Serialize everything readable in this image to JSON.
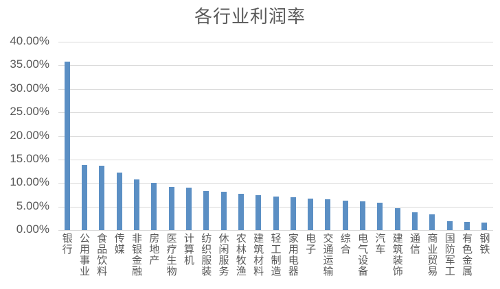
{
  "chart_data": {
    "type": "bar",
    "title": "各行业利润率",
    "xlabel": "",
    "ylabel": "",
    "ylim": [
      0,
      0.4
    ],
    "yticks": [
      "0.00%",
      "5.00%",
      "10.00%",
      "15.00%",
      "20.00%",
      "25.00%",
      "30.00%",
      "35.00%",
      "40.00%"
    ],
    "grid": true,
    "legend": null,
    "bar_color": "#5b8fc4",
    "categories": [
      "银行",
      "公用事业",
      "食品饮料",
      "传媒",
      "非银金融",
      "房地产",
      "医疗生物",
      "计算机",
      "纺织服装",
      "休闲服务",
      "农林牧渔",
      "建筑材料",
      "轻工制造",
      "家用电器",
      "电子",
      "交通运输",
      "综合",
      "电气设备",
      "汽车",
      "建筑装饰",
      "通信",
      "商业贸易",
      "国防军工",
      "有色金属",
      "钢铁"
    ],
    "values": [
      0.358,
      0.1385,
      0.1366,
      0.122,
      0.1074,
      0.0997,
      0.0918,
      0.09,
      0.0825,
      0.081,
      0.0767,
      0.074,
      0.071,
      0.0695,
      0.0666,
      0.065,
      0.062,
      0.0607,
      0.0578,
      0.046,
      0.038,
      0.0335,
      0.0194,
      0.0174,
      0.016
    ]
  }
}
